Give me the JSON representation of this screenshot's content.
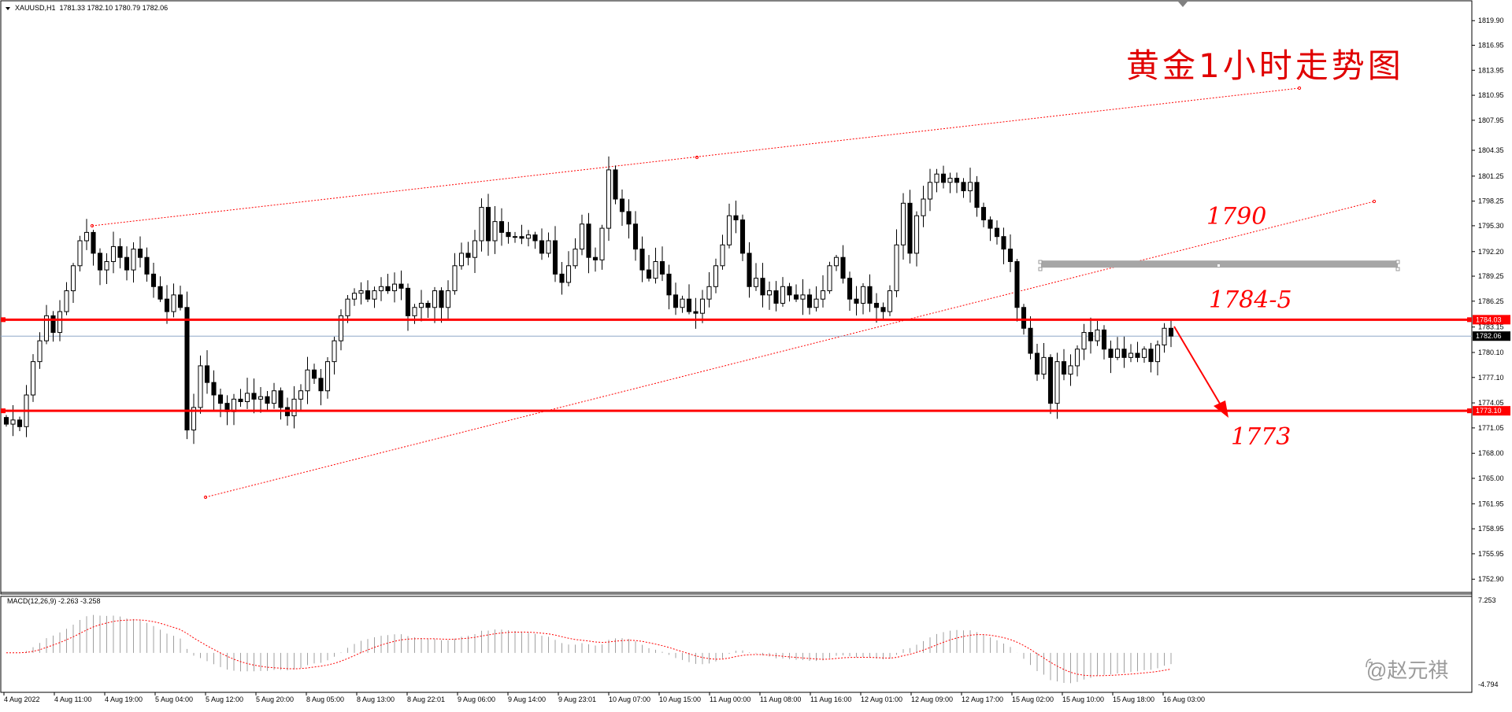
{
  "header": {
    "symbol": "XAUUSD,H1",
    "ohlc": "1781.33 1782.10 1780.79 1782.06"
  },
  "title_cn": "黄金1小时走势图",
  "annotations": {
    "a1790": "1790",
    "a1784": "1784-5",
    "a1773": "1773"
  },
  "watermark": "@赵元祺",
  "colors": {
    "red": "#ff0000",
    "grey_zone": "#a6a6a6",
    "price_line": "#8fa7c8"
  },
  "chart_data": {
    "type": "candlestick",
    "symbol": "XAUUSD",
    "timeframe": "H1",
    "ylim": [
      1751.6,
      1820.3
    ],
    "y_ticks": [
      "1819.90",
      "1816.95",
      "1813.95",
      "1810.95",
      "1807.95",
      "1804.35",
      "1801.25",
      "1798.25",
      "1795.30",
      "1792.20",
      "1789.25",
      "1786.25",
      "1783.15",
      "1780.10",
      "1777.10",
      "1774.05",
      "1771.05",
      "1768.00",
      "1765.00",
      "1761.95",
      "1758.95",
      "1755.95",
      "1752.90"
    ],
    "x_ticks": [
      "4 Aug 2022",
      "4 Aug 11:00",
      "4 Aug 19:00",
      "5 Aug 04:00",
      "5 Aug 12:00",
      "5 Aug 20:00",
      "8 Aug 05:00",
      "8 Aug 13:00",
      "8 Aug 22:01",
      "9 Aug 06:00",
      "9 Aug 14:00",
      "9 Aug 23:01",
      "10 Aug 07:00",
      "10 Aug 15:00",
      "11 Aug 00:00",
      "11 Aug 08:00",
      "11 Aug 16:00",
      "12 Aug 01:00",
      "12 Aug 09:00",
      "12 Aug 17:00",
      "15 Aug 02:00",
      "15 Aug 10:00",
      "15 Aug 18:00",
      "16 Aug 03:00"
    ],
    "current_price": "1782.06",
    "levels": [
      {
        "name": "resistance",
        "value": 1784.03,
        "label": "1784.03"
      },
      {
        "name": "support",
        "value": 1773.1,
        "label": "1773.10"
      }
    ],
    "zone": {
      "value": 1790.7
    },
    "closes": [
      1771.5,
      1772.0,
      1771.2,
      1775.0,
      1779.0,
      1781.5,
      1784.5,
      1782.5,
      1785.0,
      1787.5,
      1790.5,
      1793.5,
      1794.5,
      1792.0,
      1790.0,
      1791.0,
      1792.8,
      1791.5,
      1790.0,
      1792.5,
      1791.5,
      1789.5,
      1788.0,
      1786.5,
      1785.0,
      1787.0,
      1785.5,
      1770.8,
      1773.5,
      1778.5,
      1776.5,
      1775.0,
      1774.0,
      1773.0,
      1774.5,
      1774.2,
      1775.2,
      1774.5,
      1774.8,
      1774.0,
      1775.5,
      1773.5,
      1772.5,
      1774.5,
      1775.5,
      1778.0,
      1777.0,
      1775.5,
      1779.0,
      1781.5,
      1784.5,
      1786.5,
      1787.2,
      1787.5,
      1786.5,
      1787.5,
      1788.0,
      1787.5,
      1788.3,
      1787.8,
      1784.5,
      1785.5,
      1786.0,
      1785.5,
      1787.5,
      1785.5,
      1787.5,
      1790.5,
      1792.0,
      1791.5,
      1793.5,
      1797.5,
      1793.5,
      1795.8,
      1794.5,
      1794.0,
      1794.0,
      1793.8,
      1794.2,
      1793.5,
      1792.0,
      1793.5,
      1789.5,
      1788.5,
      1790.5,
      1792.5,
      1795.5,
      1791.5,
      1791.2,
      1795.0,
      1802.0,
      1798.5,
      1797.0,
      1795.5,
      1792.5,
      1790.0,
      1789.0,
      1791.0,
      1789.5,
      1787.0,
      1785.5,
      1786.5,
      1785.0,
      1784.8,
      1786.5,
      1788.0,
      1790.5,
      1793.0,
      1796.5,
      1796.0,
      1792.0,
      1788.0,
      1789.0,
      1787.0,
      1787.5,
      1786.0,
      1788.0,
      1787.0,
      1786.5,
      1787.0,
      1785.5,
      1786.5,
      1787.5,
      1790.5,
      1791.5,
      1789.0,
      1786.5,
      1786.0,
      1788.0,
      1786.0,
      1785.5,
      1785.0,
      1787.5,
      1793.0,
      1798.0,
      1792.0,
      1796.5,
      1798.5,
      1800.5,
      1801.5,
      1800.5,
      1801.0,
      1800.5,
      1799.5,
      1800.5,
      1797.5,
      1796.0,
      1795.0,
      1794.0,
      1792.5,
      1791.0,
      1785.5,
      1783.0,
      1780.0,
      1777.5,
      1779.5,
      1774.0,
      1779.0,
      1777.5,
      1778.5,
      1780.5,
      1782.5,
      1781.5,
      1782.8,
      1780.5,
      1779.5,
      1780.5,
      1779.5,
      1780.0,
      1779.5,
      1780.5,
      1779.0,
      1781.0,
      1783.0,
      1782.06
    ]
  }
}
